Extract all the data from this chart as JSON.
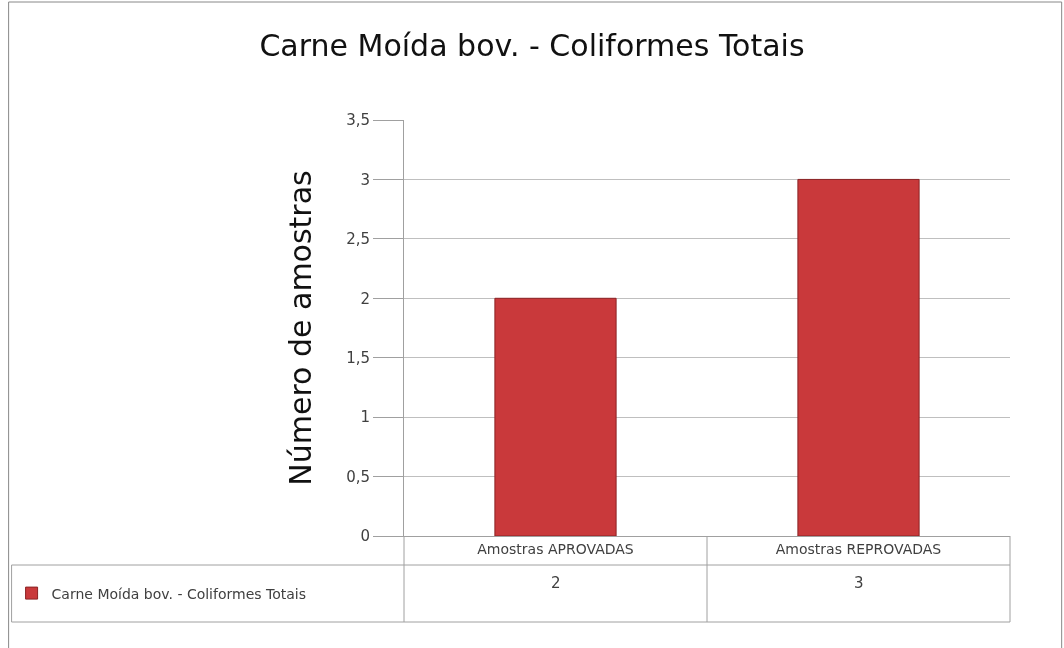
{
  "chart_data": {
    "type": "bar",
    "title": "Carne Moída bov. - Coliformes Totais",
    "ylabel": "Número de amostras",
    "categories": [
      "Amostras APROVADAS",
      "Amostras REPROVADAS"
    ],
    "series": [
      {
        "name": "Carne Moída bov. - Coliformes Totais",
        "color": "#c9393b",
        "values": [
          2,
          3
        ]
      }
    ],
    "ylim": [
      0,
      3.5
    ],
    "yticks": [
      0,
      {
        "value": 0.5,
        "label": "0,5"
      },
      1,
      {
        "value": 1.5,
        "label": "1,5"
      },
      2,
      {
        "value": 2.5,
        "label": "2,5"
      },
      3,
      {
        "value": 3.5,
        "label": "3,5"
      }
    ],
    "grid": "y",
    "legend": "bottom left",
    "data_labels": true
  }
}
